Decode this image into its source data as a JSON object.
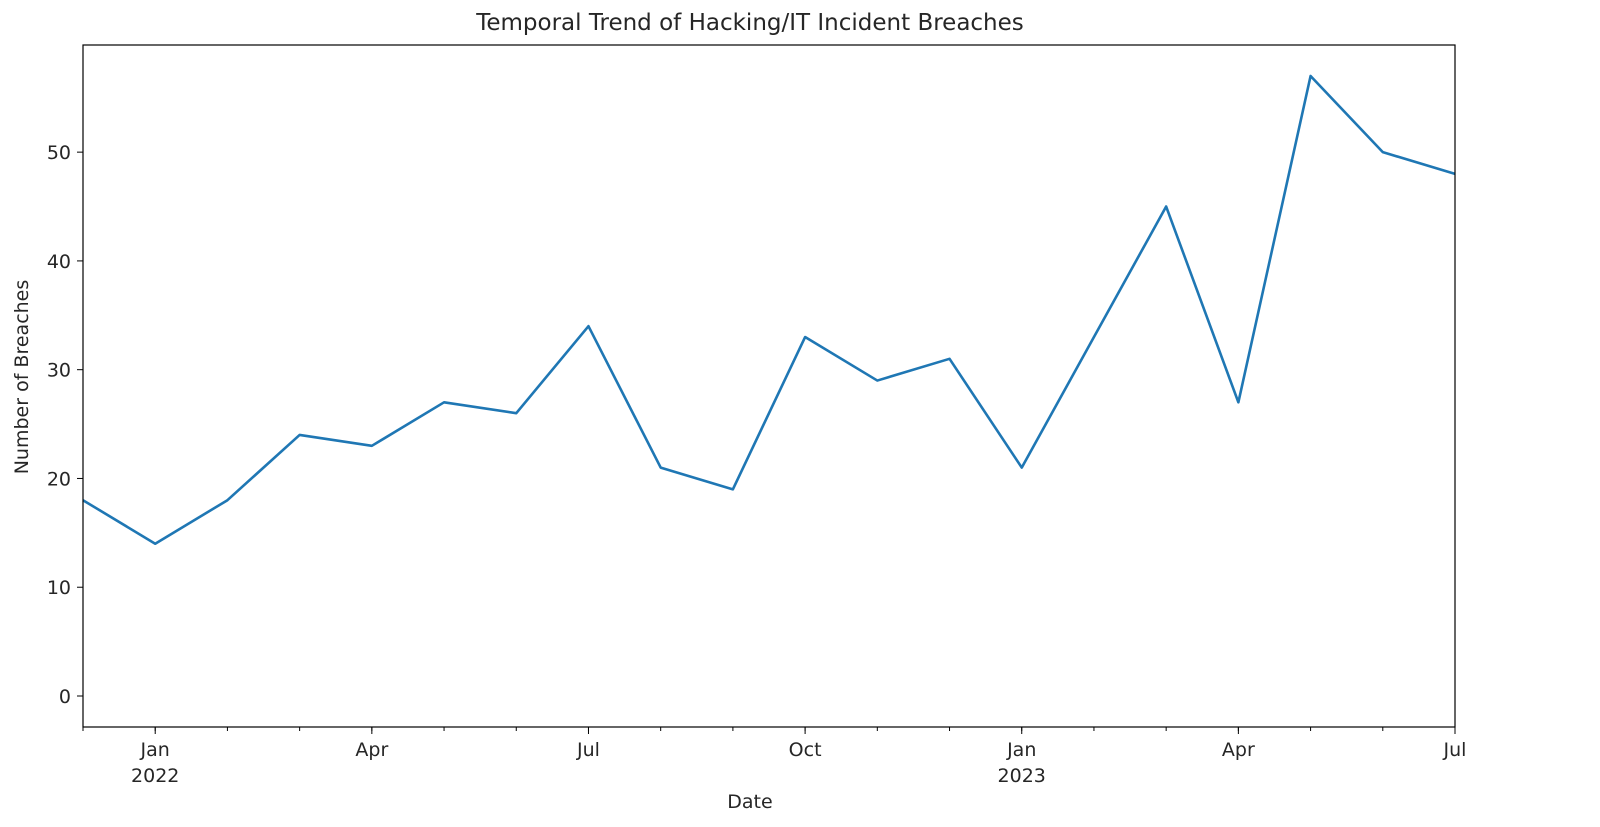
{
  "chart_data": {
    "type": "line",
    "title": "Temporal Trend of Hacking/IT Incident Breaches",
    "xlabel": "Date",
    "ylabel": "Number of Breaches",
    "series": [
      {
        "x": [
          "2021-12",
          "2022-01",
          "2022-02",
          "2022-03",
          "2022-04",
          "2022-05",
          "2022-06",
          "2022-07",
          "2022-08",
          "2022-09",
          "2022-10",
          "2022-11",
          "2022-12",
          "2023-01",
          "2023-02",
          "2023-03",
          "2023-04",
          "2023-05",
          "2023-06",
          "2023-07"
        ],
        "values": [
          18,
          14,
          18,
          24,
          23,
          27,
          26,
          34,
          21,
          19,
          33,
          29,
          31,
          21,
          33,
          45,
          27,
          57,
          50,
          48
        ],
        "color": "#1f77b4"
      }
    ],
    "xlim": [
      "2021-12",
      "2023-07"
    ],
    "ylim": [
      -2.85,
      59.85
    ],
    "yticks": [
      0,
      10,
      20,
      30,
      40,
      50
    ],
    "xticks_major": [
      {
        "x": "2022-01",
        "label": "Jan",
        "sublabel": "2022"
      },
      {
        "x": "2022-04",
        "label": "Apr",
        "sublabel": ""
      },
      {
        "x": "2022-07",
        "label": "Jul",
        "sublabel": ""
      },
      {
        "x": "2022-10",
        "label": "Oct",
        "sublabel": ""
      },
      {
        "x": "2023-01",
        "label": "Jan",
        "sublabel": "2023"
      },
      {
        "x": "2023-04",
        "label": "Apr",
        "sublabel": ""
      },
      {
        "x": "2023-07",
        "label": "Jul",
        "sublabel": ""
      }
    ],
    "grid": false,
    "legend": "none"
  }
}
